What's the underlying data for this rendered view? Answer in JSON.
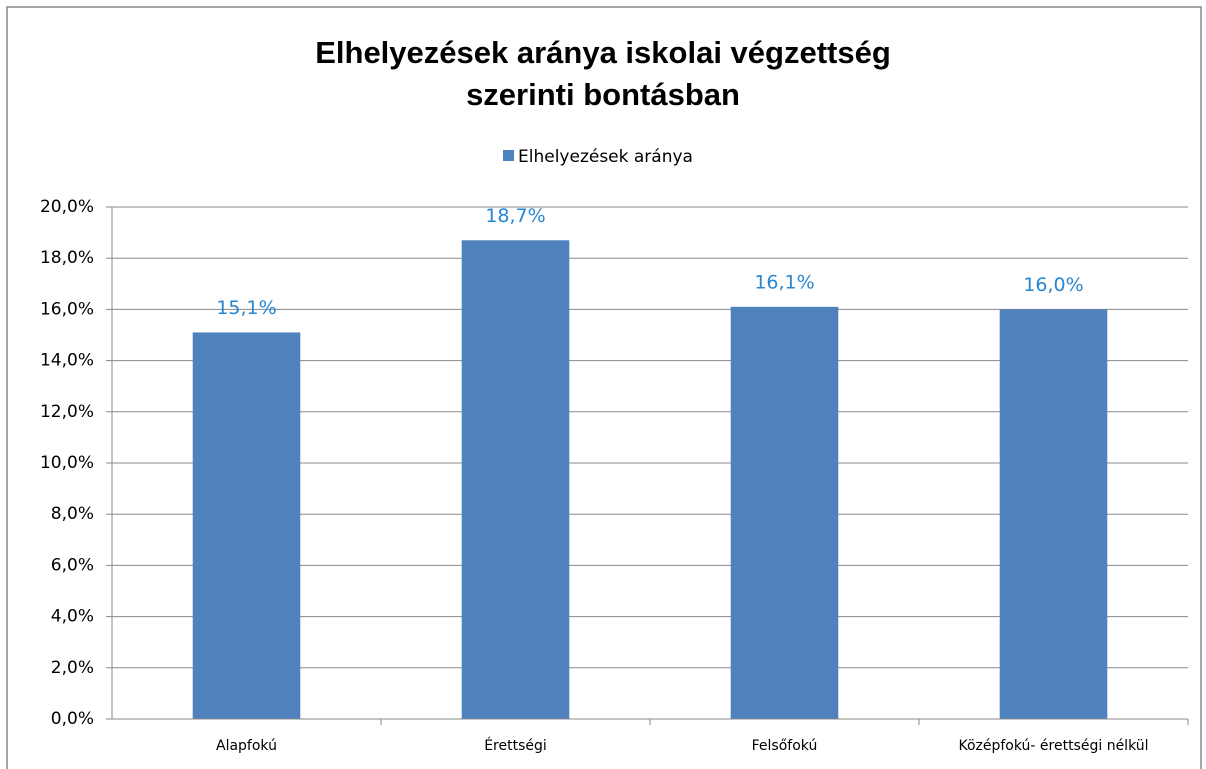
{
  "chart_data": {
    "type": "bar",
    "title": [
      "Elhelyezések aránya iskolai végzettség",
      "szerinti bontásban"
    ],
    "categories": [
      "Alapfokú",
      "Érettségi",
      "Felsőfokú",
      "Középfokú- érettségi nélkül"
    ],
    "series": [
      {
        "name": "Elhelyezések aránya",
        "color": "#4f81bd",
        "values": [
          15.1,
          18.7,
          16.1,
          16.0
        ],
        "value_labels": [
          "15,1%",
          "18,7%",
          "16,1%",
          "16,0%"
        ]
      }
    ],
    "ylim": [
      0,
      20
    ],
    "yticks": [
      {
        "value": 0,
        "label": "0,0%"
      },
      {
        "value": 2,
        "label": "2,0%"
      },
      {
        "value": 4,
        "label": "4,0%"
      },
      {
        "value": 6,
        "label": "6,0%"
      },
      {
        "value": 8,
        "label": "8,0%"
      },
      {
        "value": 10,
        "label": "10,0%"
      },
      {
        "value": 12,
        "label": "12,0%"
      },
      {
        "value": 14,
        "label": "14,0%"
      },
      {
        "value": 16,
        "label": "16,0%"
      },
      {
        "value": 18,
        "label": "18,0%"
      },
      {
        "value": 20,
        "label": "20,0%"
      }
    ],
    "grid": true,
    "legend": "top"
  }
}
